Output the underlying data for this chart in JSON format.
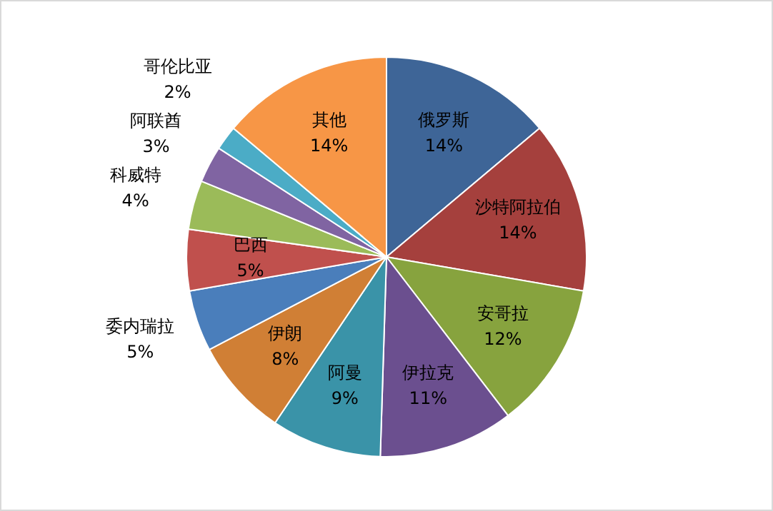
{
  "chart_data": {
    "type": "pie",
    "categories": [
      "俄罗斯",
      "沙特阿拉伯",
      "安哥拉",
      "伊拉克",
      "阿曼",
      "伊朗",
      "委内瑞拉",
      "巴西",
      "科威特",
      "阿联酋",
      "哥伦比亚",
      "其他"
    ],
    "values": [
      14,
      14,
      12,
      11,
      9,
      8,
      5,
      5,
      4,
      3,
      2,
      14
    ],
    "value_labels": [
      "14%",
      "14%",
      "12%",
      "11%",
      "9%",
      "8%",
      "5%",
      "5%",
      "4%",
      "3%",
      "2%",
      "14%"
    ],
    "colors": [
      "#3e6597",
      "#a5403d",
      "#87a33e",
      "#6b4f8f",
      "#3a93a8",
      "#d07f35",
      "#4a7ebb",
      "#c0504d",
      "#9bbb59",
      "#8064a2",
      "#4bacc6",
      "#f79646"
    ],
    "legend": false
  }
}
